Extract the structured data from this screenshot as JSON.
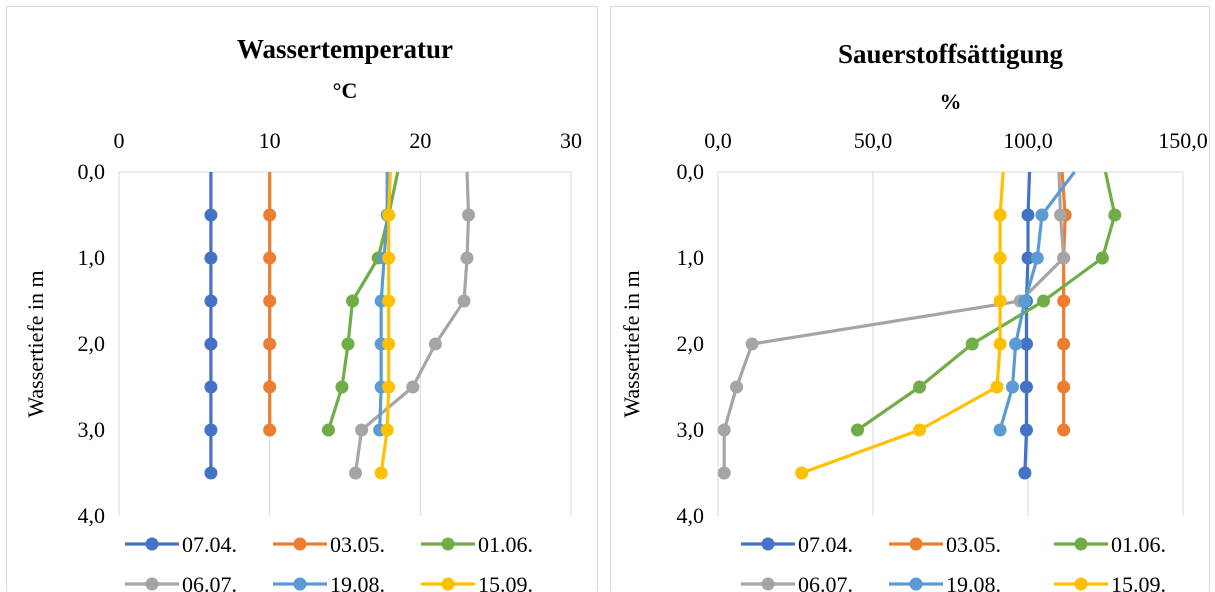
{
  "series_colors": {
    "07.04.": "#4472C4",
    "03.05.": "#ED7D31",
    "01.06.": "#70AD47",
    "06.07.": "#A5A5A5",
    "19.08.": "#5B9BD5",
    "15.09.": "#FFC000"
  },
  "chart_data": [
    {
      "type": "line",
      "title": "Wassertemperatur",
      "xlabel": "°C",
      "ylabel": "Wassertiefe in m",
      "x_axis_position": "top",
      "y_inverted": true,
      "xlim": [
        0,
        30
      ],
      "ylim": [
        0,
        4
      ],
      "x_ticks": [
        "0",
        "10",
        "20",
        "30"
      ],
      "y_ticks": [
        "0,0",
        "1,0",
        "2,0",
        "3,0",
        "4,0"
      ],
      "grid": "vertical",
      "legend_position": "bottom",
      "series": [
        {
          "name": "07.04.",
          "points": [
            [
              6.1,
              0
            ],
            [
              6.1,
              0.5
            ],
            [
              6.1,
              1.0
            ],
            [
              6.1,
              1.5
            ],
            [
              6.1,
              2.0
            ],
            [
              6.1,
              2.5
            ],
            [
              6.1,
              3.0
            ],
            [
              6.1,
              3.5
            ]
          ],
          "markers": [
            false,
            true,
            true,
            true,
            true,
            true,
            true,
            true
          ]
        },
        {
          "name": "03.05.",
          "points": [
            [
              10.0,
              0
            ],
            [
              10.0,
              0.5
            ],
            [
              10.0,
              1.0
            ],
            [
              10.0,
              1.5
            ],
            [
              10.0,
              2.0
            ],
            [
              10.0,
              2.5
            ],
            [
              10.0,
              3.0
            ]
          ],
          "markers": [
            false,
            true,
            true,
            true,
            true,
            true,
            true
          ]
        },
        {
          "name": "01.06.",
          "points": [
            [
              18.5,
              0
            ],
            [
              17.9,
              0.5
            ],
            [
              17.2,
              1.0
            ],
            [
              15.5,
              1.5
            ],
            [
              15.2,
              2.0
            ],
            [
              14.8,
              2.5
            ],
            [
              13.9,
              3.0
            ]
          ],
          "markers": [
            false,
            true,
            true,
            true,
            true,
            true,
            true
          ]
        },
        {
          "name": "06.07.",
          "points": [
            [
              23.1,
              0
            ],
            [
              23.2,
              0.5
            ],
            [
              23.1,
              1.0
            ],
            [
              22.9,
              1.5
            ],
            [
              21.0,
              2.0
            ],
            [
              19.5,
              2.5
            ],
            [
              16.1,
              3.0
            ],
            [
              15.7,
              3.5
            ]
          ],
          "markers": [
            false,
            true,
            true,
            true,
            true,
            true,
            true,
            true
          ]
        },
        {
          "name": "19.08.",
          "points": [
            [
              17.8,
              0
            ],
            [
              17.8,
              0.5
            ],
            [
              17.6,
              1.0
            ],
            [
              17.4,
              1.5
            ],
            [
              17.4,
              2.0
            ],
            [
              17.4,
              2.5
            ],
            [
              17.3,
              3.0
            ]
          ],
          "markers": [
            false,
            true,
            true,
            true,
            true,
            true,
            true
          ]
        },
        {
          "name": "15.09.",
          "points": [
            [
              18.0,
              0
            ],
            [
              17.9,
              0.5
            ],
            [
              17.9,
              1.0
            ],
            [
              17.9,
              1.5
            ],
            [
              17.9,
              2.0
            ],
            [
              17.9,
              2.5
            ],
            [
              17.8,
              3.0
            ],
            [
              17.4,
              3.5
            ]
          ],
          "markers": [
            false,
            true,
            true,
            true,
            true,
            true,
            true,
            true
          ]
        }
      ]
    },
    {
      "type": "line",
      "title": "Sauerstoffsättigung",
      "xlabel": "%",
      "ylabel": "Wassertiefe in m",
      "x_axis_position": "top",
      "y_inverted": true,
      "xlim": [
        0,
        150
      ],
      "ylim": [
        0,
        4
      ],
      "x_ticks": [
        "0,0",
        "50,0",
        "100,0",
        "150,0"
      ],
      "y_ticks": [
        "0,0",
        "1,0",
        "2,0",
        "3,0",
        "4,0"
      ],
      "grid": "vertical",
      "legend_position": "bottom",
      "series": [
        {
          "name": "07.04.",
          "points": [
            [
              100.5,
              0
            ],
            [
              100,
              0.5
            ],
            [
              100,
              1.0
            ],
            [
              99.5,
              1.5
            ],
            [
              99.5,
              2.0
            ],
            [
              99.5,
              2.5
            ],
            [
              99.5,
              3.0
            ],
            [
              99,
              3.5
            ]
          ],
          "markers": [
            false,
            true,
            true,
            true,
            true,
            true,
            true,
            true
          ]
        },
        {
          "name": "03.05.",
          "points": [
            [
              111,
              0
            ],
            [
              112,
              0.5
            ],
            [
              111.5,
              1.0
            ],
            [
              111.5,
              1.5
            ],
            [
              111.5,
              2.0
            ],
            [
              111.5,
              2.5
            ],
            [
              111.5,
              3.0
            ]
          ],
          "markers": [
            false,
            true,
            true,
            true,
            true,
            true,
            true
          ]
        },
        {
          "name": "01.06.",
          "points": [
            [
              125,
              0
            ],
            [
              128,
              0.5
            ],
            [
              124,
              1.0
            ],
            [
              105,
              1.5
            ],
            [
              82,
              2.0
            ],
            [
              65,
              2.5
            ],
            [
              45,
              3.0
            ]
          ],
          "markers": [
            false,
            true,
            true,
            true,
            true,
            true,
            true
          ]
        },
        {
          "name": "06.07.",
          "points": [
            [
              110,
              0
            ],
            [
              110.5,
              0.5
            ],
            [
              111.5,
              1.0
            ],
            [
              97.5,
              1.5
            ],
            [
              11,
              2.0
            ],
            [
              6,
              2.5
            ],
            [
              2,
              3.0
            ],
            [
              2,
              3.5
            ]
          ],
          "markers": [
            false,
            true,
            true,
            true,
            true,
            true,
            true,
            true
          ]
        },
        {
          "name": "19.08.",
          "points": [
            [
              115,
              0
            ],
            [
              104.5,
              0.5
            ],
            [
              103,
              1.0
            ],
            [
              99,
              1.5
            ],
            [
              96,
              2.0
            ],
            [
              95,
              2.5
            ],
            [
              91,
              3.0
            ]
          ],
          "markers": [
            false,
            true,
            true,
            true,
            true,
            true,
            true
          ]
        },
        {
          "name": "15.09.",
          "points": [
            [
              92,
              0
            ],
            [
              91,
              0.5
            ],
            [
              91,
              1.0
            ],
            [
              91,
              1.5
            ],
            [
              91,
              2.0
            ],
            [
              90,
              2.5
            ],
            [
              65,
              3.0
            ],
            [
              27,
              3.5
            ]
          ],
          "markers": [
            false,
            true,
            true,
            true,
            true,
            true,
            true,
            true
          ]
        }
      ]
    }
  ]
}
